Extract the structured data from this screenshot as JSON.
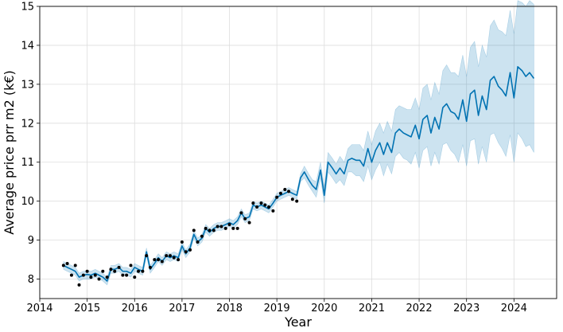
{
  "chart_data": {
    "type": "line",
    "xlabel": "Year",
    "ylabel": "Average price prr m2 (k€)",
    "xlim": [
      2014.0,
      2024.9
    ],
    "ylim": [
      7.5,
      15.0
    ],
    "xticks": [
      "2014",
      "2015",
      "2016",
      "2017",
      "2018",
      "2019",
      "2020",
      "2021",
      "2022",
      "2023",
      "2024"
    ],
    "yticks": [
      "8",
      "9",
      "10",
      "11",
      "12",
      "13",
      "14",
      "15"
    ],
    "grid": true,
    "colors": {
      "forecast_line": "#0072B2",
      "uncertainty_band": "#0072B2",
      "observed_points": "#000000",
      "grid": "#dddddd"
    },
    "series": [
      {
        "role": "forecast",
        "x": [
          2014.5,
          2014.58,
          2014.67,
          2014.75,
          2014.83,
          2014.92,
          2015.0,
          2015.08,
          2015.17,
          2015.25,
          2015.33,
          2015.42,
          2015.5,
          2015.58,
          2015.67,
          2015.75,
          2015.83,
          2015.92,
          2016.0,
          2016.08,
          2016.17,
          2016.25,
          2016.33,
          2016.42,
          2016.5,
          2016.58,
          2016.67,
          2016.75,
          2016.83,
          2016.92,
          2017.0,
          2017.08,
          2017.17,
          2017.25,
          2017.33,
          2017.42,
          2017.5,
          2017.58,
          2017.67,
          2017.75,
          2017.83,
          2017.92,
          2018.0,
          2018.08,
          2018.17,
          2018.25,
          2018.33,
          2018.42,
          2018.5,
          2018.58,
          2018.67,
          2018.75,
          2018.83,
          2018.92,
          2019.0,
          2019.08,
          2019.17,
          2019.25,
          2019.33,
          2019.42,
          2019.5,
          2019.58,
          2019.67,
          2019.75,
          2019.83,
          2019.92,
          2020.0,
          2020.08,
          2020.17,
          2020.25,
          2020.33,
          2020.42,
          2020.5,
          2020.58,
          2020.67,
          2020.75,
          2020.83,
          2020.92,
          2021.0,
          2021.08,
          2021.17,
          2021.25,
          2021.33,
          2021.42,
          2021.5,
          2021.58,
          2021.67,
          2021.75,
          2021.83,
          2021.92,
          2022.0,
          2022.08,
          2022.17,
          2022.25,
          2022.33,
          2022.42,
          2022.5,
          2022.58,
          2022.67,
          2022.75,
          2022.83,
          2022.92,
          2023.0,
          2023.08,
          2023.17,
          2023.25,
          2023.33,
          2023.42,
          2023.5,
          2023.58,
          2023.67,
          2023.75,
          2023.83,
          2023.92,
          2024.0,
          2024.08,
          2024.17,
          2024.25,
          2024.33,
          2024.42
        ],
        "y": [
          8.35,
          8.3,
          8.25,
          8.2,
          8.05,
          8.1,
          8.12,
          8.1,
          8.15,
          8.1,
          8.05,
          7.95,
          8.25,
          8.25,
          8.3,
          8.2,
          8.2,
          8.15,
          8.3,
          8.25,
          8.2,
          8.7,
          8.25,
          8.4,
          8.55,
          8.45,
          8.6,
          8.55,
          8.6,
          8.55,
          8.85,
          8.65,
          8.8,
          9.15,
          8.95,
          9.05,
          9.3,
          9.2,
          9.3,
          9.35,
          9.35,
          9.4,
          9.45,
          9.4,
          9.5,
          9.7,
          9.55,
          9.6,
          9.9,
          9.85,
          9.9,
          9.85,
          9.8,
          9.95,
          10.1,
          10.15,
          10.2,
          10.25,
          10.2,
          10.15,
          10.6,
          10.75,
          10.55,
          10.4,
          10.3,
          10.8,
          10.15,
          11.0,
          10.85,
          10.7,
          10.85,
          10.7,
          11.05,
          11.1,
          11.05,
          11.05,
          10.9,
          11.35,
          11.0,
          11.3,
          11.5,
          11.2,
          11.5,
          11.25,
          11.75,
          11.85,
          11.75,
          11.7,
          11.65,
          11.95,
          11.6,
          12.1,
          12.2,
          11.75,
          12.15,
          11.85,
          12.4,
          12.5,
          12.3,
          12.25,
          12.1,
          12.6,
          12.05,
          12.75,
          12.85,
          12.2,
          12.7,
          12.35,
          13.1,
          13.2,
          12.95,
          12.85,
          12.7,
          13.3,
          12.65,
          13.45,
          13.35,
          13.2,
          13.3,
          13.15
        ],
        "lower": [
          8.25,
          8.2,
          8.15,
          8.1,
          7.95,
          8.0,
          8.0,
          8.0,
          8.05,
          8.0,
          7.95,
          7.85,
          8.15,
          8.15,
          8.2,
          8.1,
          8.1,
          8.05,
          8.2,
          8.15,
          8.1,
          8.6,
          8.15,
          8.3,
          8.45,
          8.35,
          8.5,
          8.45,
          8.5,
          8.45,
          8.75,
          8.55,
          8.7,
          9.05,
          8.85,
          8.95,
          9.2,
          9.1,
          9.2,
          9.25,
          9.25,
          9.3,
          9.35,
          9.3,
          9.4,
          9.6,
          9.45,
          9.5,
          9.8,
          9.75,
          9.8,
          9.75,
          9.7,
          9.85,
          10.0,
          10.05,
          10.1,
          10.15,
          10.1,
          10.05,
          10.5,
          10.6,
          10.4,
          10.25,
          10.1,
          10.6,
          9.95,
          10.75,
          10.6,
          10.45,
          10.55,
          10.4,
          10.75,
          10.75,
          10.65,
          10.65,
          10.5,
          10.9,
          10.55,
          10.8,
          11.0,
          10.65,
          10.95,
          10.7,
          11.15,
          11.25,
          11.1,
          11.05,
          10.95,
          11.25,
          10.85,
          11.3,
          11.4,
          10.9,
          11.25,
          10.95,
          11.45,
          11.5,
          11.3,
          11.2,
          11.0,
          11.45,
          10.9,
          11.55,
          11.6,
          10.95,
          11.4,
          11.0,
          11.7,
          11.75,
          11.5,
          11.35,
          11.15,
          11.7,
          11.0,
          11.75,
          11.6,
          11.4,
          11.45,
          11.25
        ],
        "upper": [
          8.45,
          8.4,
          8.35,
          8.3,
          8.15,
          8.2,
          8.22,
          8.2,
          8.25,
          8.2,
          8.15,
          8.05,
          8.35,
          8.35,
          8.4,
          8.3,
          8.3,
          8.25,
          8.4,
          8.35,
          8.3,
          8.8,
          8.35,
          8.5,
          8.65,
          8.55,
          8.7,
          8.65,
          8.7,
          8.65,
          8.95,
          8.75,
          8.9,
          9.25,
          9.05,
          9.15,
          9.4,
          9.3,
          9.4,
          9.45,
          9.45,
          9.5,
          9.55,
          9.5,
          9.6,
          9.8,
          9.65,
          9.7,
          10.0,
          9.95,
          10.0,
          9.95,
          9.9,
          10.05,
          10.2,
          10.25,
          10.3,
          10.35,
          10.3,
          10.25,
          10.7,
          10.9,
          10.7,
          10.55,
          10.5,
          11.0,
          10.35,
          11.25,
          11.1,
          10.95,
          11.15,
          11.0,
          11.35,
          11.45,
          11.45,
          11.45,
          11.3,
          11.8,
          11.45,
          11.8,
          12.0,
          11.75,
          12.05,
          11.8,
          12.35,
          12.45,
          12.4,
          12.35,
          12.35,
          12.65,
          12.35,
          12.9,
          13.0,
          12.6,
          13.05,
          12.75,
          13.35,
          13.5,
          13.3,
          13.3,
          13.2,
          13.75,
          13.2,
          13.95,
          14.1,
          13.45,
          14.0,
          13.7,
          14.5,
          14.65,
          14.4,
          14.35,
          14.25,
          14.9,
          14.3,
          15.15,
          15.1,
          15.0,
          15.15,
          15.05
        ]
      },
      {
        "role": "observed",
        "x": [
          2014.5,
          2014.58,
          2014.67,
          2014.75,
          2014.83,
          2014.92,
          2015.0,
          2015.08,
          2015.17,
          2015.25,
          2015.33,
          2015.42,
          2015.5,
          2015.58,
          2015.67,
          2015.75,
          2015.83,
          2015.92,
          2016.0,
          2016.08,
          2016.17,
          2016.25,
          2016.33,
          2016.42,
          2016.5,
          2016.58,
          2016.67,
          2016.75,
          2016.83,
          2016.92,
          2017.0,
          2017.08,
          2017.17,
          2017.25,
          2017.33,
          2017.42,
          2017.5,
          2017.58,
          2017.67,
          2017.75,
          2017.83,
          2017.92,
          2018.0,
          2018.08,
          2018.17,
          2018.25,
          2018.33,
          2018.42,
          2018.5,
          2018.58,
          2018.67,
          2018.75,
          2018.83,
          2018.92,
          2019.0,
          2019.08,
          2019.17,
          2019.25,
          2019.33,
          2019.42
        ],
        "y": [
          8.35,
          8.4,
          8.1,
          8.35,
          7.85,
          8.1,
          8.2,
          8.05,
          8.1,
          8.0,
          8.2,
          8.05,
          8.25,
          8.2,
          8.3,
          8.1,
          8.1,
          8.35,
          8.05,
          8.2,
          8.2,
          8.6,
          8.3,
          8.5,
          8.5,
          8.45,
          8.6,
          8.6,
          8.55,
          8.5,
          8.95,
          8.7,
          8.75,
          9.25,
          8.95,
          9.1,
          9.3,
          9.25,
          9.25,
          9.35,
          9.35,
          9.3,
          9.4,
          9.3,
          9.3,
          9.7,
          9.55,
          9.45,
          9.95,
          9.85,
          9.95,
          9.9,
          9.85,
          9.75,
          10.1,
          10.2,
          10.3,
          10.25,
          10.05,
          10.0
        ]
      }
    ]
  }
}
